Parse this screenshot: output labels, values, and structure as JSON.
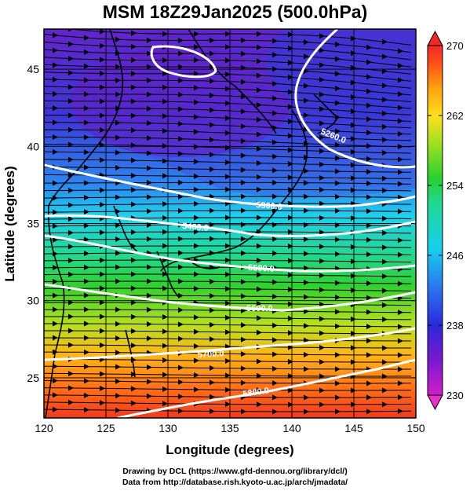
{
  "title": "MSM 18Z29Jan2025 (500.0hPa)",
  "credit_line1": "Drawing by DCL (https://www.gfd-dennou.org/library/dcl/)",
  "credit_line2": "Data from http://database.rish.kyoto-u.ac.jp/arch/jmadata/",
  "map": {
    "xlabel": "Longitude (degrees)",
    "ylabel": "Latitude  (degrees)",
    "lon_range": [
      120,
      150
    ],
    "lat_range": [
      22.4,
      47.6
    ],
    "lon_ticks": [
      "120",
      "125",
      "130",
      "135",
      "140",
      "145",
      "150"
    ],
    "lat_ticks": [
      "25",
      "30",
      "35",
      "40",
      "45"
    ],
    "grid": true,
    "streamlines": true,
    "fill_variable": "temperature",
    "contour_variable": "geopotential height"
  },
  "colorbar": {
    "min": 230,
    "max": 270,
    "ticks": [
      "230",
      "238",
      "246",
      "254",
      "262",
      "270"
    ],
    "colors": [
      "#d020c8",
      "#7a18d0",
      "#2a2ad8",
      "#2a70f0",
      "#18d0ee",
      "#22d890",
      "#28d030",
      "#a0e020",
      "#ffe020",
      "#ffa010",
      "#ff5018",
      "#f02828"
    ]
  },
  "contours": [
    {
      "label": "5260.0"
    },
    {
      "label": "5300.0"
    },
    {
      "label": "5400.0"
    },
    {
      "label": "5500.0"
    },
    {
      "label": "5600.0"
    },
    {
      "label": "5700.0"
    },
    {
      "label": "5800.0"
    }
  ]
}
